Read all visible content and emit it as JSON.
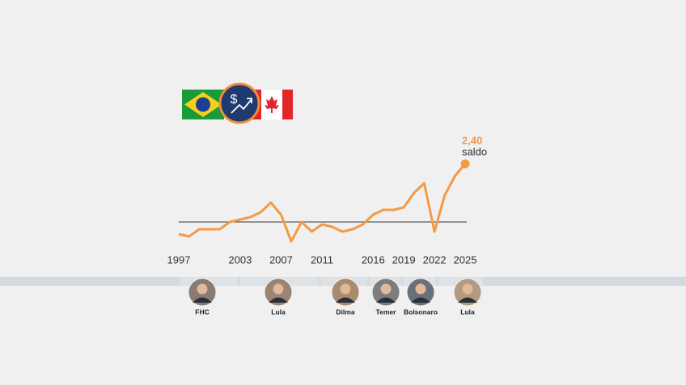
{
  "chart_data": {
    "type": "line",
    "x": [
      1997,
      1998,
      1999,
      2000,
      2001,
      2002,
      2003,
      2004,
      2005,
      2006,
      2007,
      2008,
      2009,
      2010,
      2011,
      2012,
      2013,
      2014,
      2015,
      2016,
      2017,
      2018,
      2019,
      2020,
      2021,
      2022,
      2023,
      2024,
      2025
    ],
    "values": [
      -0.5,
      -0.6,
      -0.3,
      -0.3,
      -0.3,
      0,
      0.1,
      0.2,
      0.4,
      0.8,
      0.3,
      -0.8,
      0,
      -0.4,
      -0.1,
      -0.2,
      -0.4,
      -0.3,
      -0.1,
      0.3,
      0.5,
      0.5,
      0.6,
      1.2,
      1.6,
      -0.4,
      1.1,
      1.9,
      2.4
    ],
    "value_labels": [
      null,
      null,
      null,
      null,
      null,
      null,
      null,
      null,
      null,
      null,
      null,
      null,
      null,
      null,
      null,
      null,
      null,
      null,
      null,
      null,
      null,
      null,
      null,
      null,
      null,
      null,
      null,
      null,
      "2,40"
    ],
    "annotation": "saldo",
    "color": "#f39a45",
    "xlim": [
      1997,
      2025
    ],
    "xticks": [
      1997,
      2003,
      2007,
      2011,
      2016,
      2019,
      2022,
      2025
    ],
    "ylim": [
      -0.9,
      2.4
    ],
    "presidents": [
      "FHC",
      "Lula",
      "Dilma",
      "Temer",
      "Bolsonaro",
      "Lula"
    ]
  }
}
